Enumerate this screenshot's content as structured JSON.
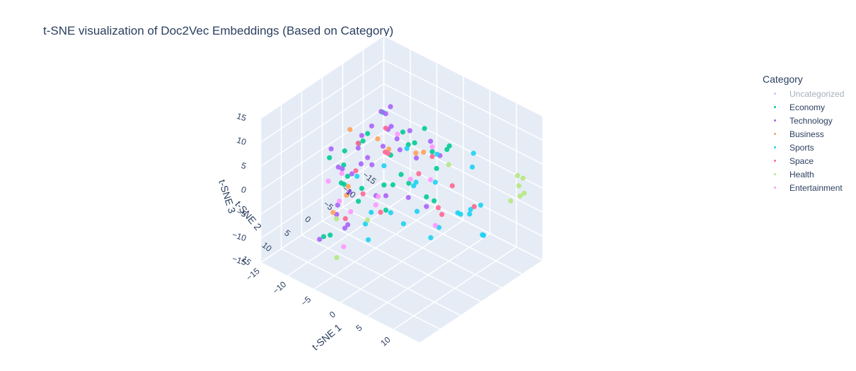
{
  "chart_data": {
    "type": "scatter",
    "title": "t-SNE visualization of Doc2Vec Embeddings (Based on Category)",
    "xlabel": "t-SNE 1",
    "ylabel": "t-SNE 2",
    "zlabel": "t-SNE 3",
    "x_ticks": [
      "−15",
      "−10",
      "−5",
      "0",
      "5",
      "10"
    ],
    "y_ticks": [
      "−15",
      "−10",
      "−5",
      "0",
      "5",
      "10",
      "15"
    ],
    "z_ticks": [
      "−15",
      "−10",
      "−5",
      "0",
      "5",
      "10",
      "15"
    ],
    "xlim": [
      -15,
      15
    ],
    "ylim": [
      -15,
      15
    ],
    "zlim": [
      -15,
      15
    ],
    "legend": {
      "title": "Category",
      "placement": "right",
      "items": [
        {
          "name": "Uncategorized",
          "color": "#636efa",
          "hidden": true
        },
        {
          "name": "Economy",
          "color": "#00cc96"
        },
        {
          "name": "Technology",
          "color": "#ab63fa"
        },
        {
          "name": "Business",
          "color": "#ffa15a"
        },
        {
          "name": "Sports",
          "color": "#19d3f3"
        },
        {
          "name": "Space",
          "color": "#ff6692"
        },
        {
          "name": "Health",
          "color": "#b6e880"
        },
        {
          "name": "Entertainment",
          "color": "#ff97ff"
        }
      ]
    },
    "series": [
      {
        "name": "Economy",
        "x": [
          -6,
          -4,
          -8,
          -2,
          0,
          -10,
          -5,
          3,
          -7,
          -9,
          -3,
          -6,
          2,
          -1,
          -4,
          -11,
          -5,
          1,
          -8,
          -2,
          5,
          -6,
          -3,
          -7,
          0,
          -9,
          -4,
          2,
          -12,
          -5
        ],
        "y": [
          -8,
          -5,
          -2,
          -10,
          -6,
          1,
          3,
          -4,
          5,
          -7,
          0,
          7,
          -9,
          -3,
          9,
          -1,
          -12,
          4,
          -6,
          8,
          -2,
          2,
          -7,
          10,
          -11,
          6,
          -3,
          1,
          -5,
          11
        ],
        "z": [
          4,
          -2,
          6,
          1,
          -5,
          3,
          9,
          -3,
          0,
          7,
          -6,
          2,
          5,
          -1,
          8,
          -4,
          3,
          10,
          -7,
          1,
          6,
          -2,
          4,
          -8,
          2,
          5,
          -3,
          11,
          0,
          -6
        ]
      },
      {
        "name": "Technology",
        "x": [
          -5,
          -8,
          -3,
          -10,
          -2,
          -6,
          -9,
          0,
          -4,
          -7,
          2,
          -11,
          -5,
          -1,
          -8,
          -3,
          -6,
          1,
          -9,
          -4,
          -7,
          -2,
          -10,
          -5,
          0,
          -6,
          -3,
          -8,
          -12,
          -1,
          -4,
          -7
        ],
        "y": [
          -6,
          -3,
          0,
          -9,
          2,
          5,
          -1,
          -7,
          8,
          -4,
          1,
          3,
          -10,
          6,
          -2,
          10,
          -5,
          -8,
          4,
          7,
          -11,
          0,
          -3,
          9,
          -6,
          2,
          12,
          -7,
          -1,
          5,
          -4,
          11
        ],
        "z": [
          2,
          7,
          -3,
          5,
          9,
          -1,
          3,
          6,
          -5,
          10,
          0,
          4,
          -2,
          8,
          1,
          -4,
          11,
          3,
          -6,
          5,
          2,
          12,
          -2,
          7,
          -7,
          9,
          0,
          4,
          -3,
          1,
          6,
          -8
        ]
      },
      {
        "name": "Business",
        "x": [
          -4,
          -7,
          -2,
          -9,
          -5,
          1,
          -6,
          -3
        ],
        "y": [
          -2,
          4,
          -6,
          1,
          7,
          -4,
          9,
          2
        ],
        "z": [
          5,
          -1,
          3,
          8,
          0,
          6,
          -3,
          10
        ]
      },
      {
        "name": "Sports",
        "x": [
          4,
          7,
          2,
          9,
          5,
          11,
          6,
          3,
          8,
          10,
          1,
          12,
          5,
          7,
          9,
          4,
          -2,
          -5,
          -8,
          -3,
          -6,
          -10,
          -1,
          -4
        ],
        "y": [
          -3,
          0,
          -6,
          -2,
          3,
          -5,
          -9,
          1,
          -4,
          -7,
          4,
          -1,
          -11,
          2,
          -8,
          -12,
          -3,
          1,
          -6,
          5,
          -9,
          -2,
          -5,
          3
        ],
        "z": [
          2,
          -4,
          5,
          -1,
          6,
          0,
          -6,
          3,
          -3,
          -8,
          -2,
          1,
          4,
          -5,
          -9,
          0,
          -10,
          -7,
          -3,
          -6,
          0,
          -4,
          -8,
          -11
        ]
      },
      {
        "name": "Space",
        "x": [
          -7,
          -3,
          -9,
          -5,
          -11,
          -2,
          -6,
          -8,
          3,
          6,
          9,
          -4,
          -10,
          1
        ],
        "y": [
          -5,
          -8,
          -1,
          3,
          -3,
          -10,
          6,
          -7,
          -5,
          -2,
          -6,
          0,
          -9,
          -11
        ],
        "z": [
          1,
          -3,
          4,
          -2,
          -4,
          0,
          -6,
          -1,
          -5,
          -3,
          -2,
          -7,
          2,
          -5
        ]
      },
      {
        "name": "Health",
        "x": [
          12,
          13,
          11,
          12,
          13,
          12,
          -3,
          -8,
          -2,
          -10
        ],
        "y": [
          -13,
          -12,
          -14,
          -11,
          -13,
          -14,
          12,
          -2,
          -14,
          3
        ],
        "z": [
          0,
          -1,
          1,
          -2,
          -1,
          1,
          -9,
          -12,
          -4,
          -10
        ]
      },
      {
        "name": "Entertainment",
        "x": [
          -6,
          -9,
          -3,
          -11,
          -5,
          -2,
          -8,
          0,
          -4,
          -7,
          4,
          -10
        ],
        "y": [
          -2,
          3,
          -6,
          1,
          6,
          -10,
          -4,
          -7,
          9,
          -8,
          -3,
          5
        ],
        "z": [
          -6,
          0,
          -3,
          -8,
          -4,
          2,
          -10,
          -2,
          -9,
          3,
          -7,
          -1
        ]
      }
    ]
  }
}
